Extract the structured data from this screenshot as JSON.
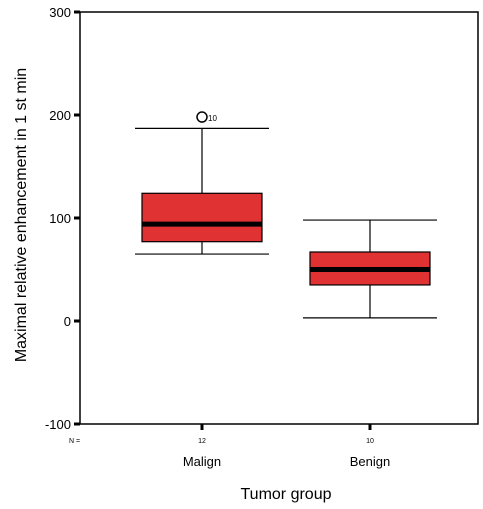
{
  "chart_data": {
    "type": "boxplot",
    "title": "",
    "xlabel": "Tumor group",
    "ylabel": "Maximal relative enhancement in 1 st min",
    "ylim": [
      -100,
      300
    ],
    "yticks": [
      "-100",
      "0",
      "100",
      "200",
      "300"
    ],
    "n_label": "N =",
    "box_color": "#e03232",
    "categories": [
      {
        "name": "Malign",
        "n": "12",
        "min": 65,
        "q1": 77,
        "median": 94,
        "q3": 124,
        "max": 187,
        "outliers": [
          {
            "value": 198,
            "label": "10"
          }
        ]
      },
      {
        "name": "Benign",
        "n": "10",
        "min": 3,
        "q1": 35,
        "median": 50,
        "q3": 67,
        "max": 98,
        "outliers": []
      }
    ]
  }
}
